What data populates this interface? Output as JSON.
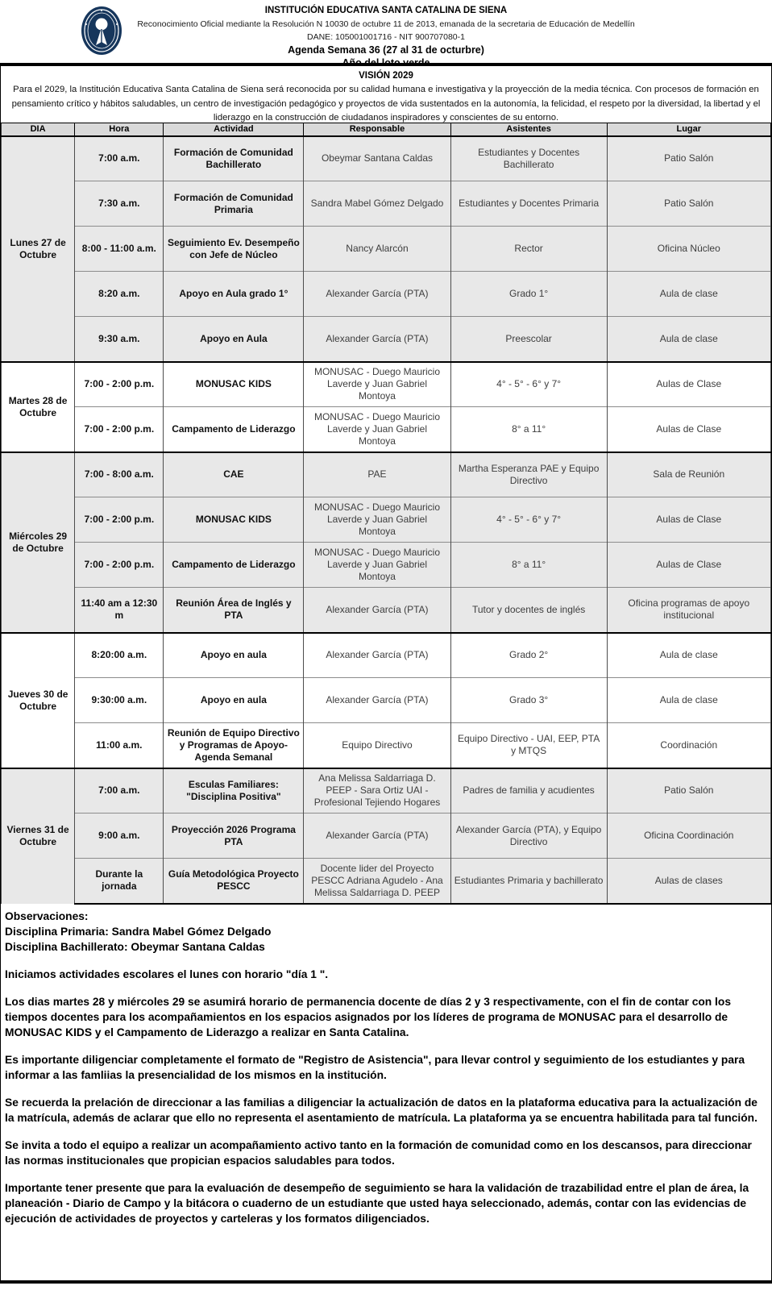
{
  "header": {
    "institution": "INSTITUCIÓN EDUCATIVA SANTA CATALINA DE SIENA",
    "recognition": "Reconocimiento Oficial mediante la Resolución N 10030 de octubre 11 de 2013, emanada de la secretaria de Educación de Medellín",
    "dane_nit": "DANE: 105001001716 - NIT 900707080-1",
    "agenda_title": "Agenda Semana 36 (27 al 31 de octurbre)",
    "year_motto": "Año del loto verde",
    "logo": "school-seal-icon"
  },
  "vision": {
    "title": "VISIÓN 2029",
    "text": "Para el 2029, la Institución Educativa Santa Catalina de Siena será reconocida por su calidad humana e investigativa y la proyección de la media técnica. Con procesos de formación en pensamiento crítico y hábitos saludables, un centro de investigación pedagógico y proyectos de vida sustentados en la autonomía, la felicidad, el respeto por la diversidad, la libertad y el liderazgo en la construcción de ciudadanos inspiradores y conscientes de su entorno."
  },
  "table": {
    "columns": [
      "DIA",
      "Hora",
      "Actividad",
      "Responsable",
      "Asistentes",
      "Lugar"
    ],
    "days": [
      {
        "day": "Lunes 27 de Octubre",
        "shaded": true,
        "rows": [
          {
            "hora": "7:00 a.m.",
            "actividad": "Formación de Comunidad Bachillerato",
            "responsable": "Obeymar Santana Caldas",
            "asistentes": "Estudiantes y Docentes Bachillerato",
            "lugar": "Patio Salón"
          },
          {
            "hora": "7:30 a.m.",
            "actividad": "Formación de Comunidad Primaria",
            "responsable": "Sandra Mabel Gómez Delgado",
            "asistentes": "Estudiantes y Docentes Primaria",
            "lugar": "Patio Salón"
          },
          {
            "hora": "8:00 - 11:00 a.m.",
            "actividad": "Seguimiento Ev. Desempeño con Jefe de Núcleo",
            "responsable": "Nancy Alarcón",
            "asistentes": "Rector",
            "lugar": "Oficina Núcleo"
          },
          {
            "hora": "8:20 a.m.",
            "actividad": "Apoyo en Aula grado 1°",
            "responsable": "Alexander García (PTA)",
            "asistentes": "Grado 1°",
            "lugar": "Aula de clase"
          },
          {
            "hora": "9:30 a.m.",
            "actividad": "Apoyo en Aula",
            "responsable": "Alexander García (PTA)",
            "asistentes": "Preescolar",
            "lugar": "Aula de clase"
          }
        ]
      },
      {
        "day": "Martes 28 de Octubre",
        "shaded": false,
        "rows": [
          {
            "hora": "7:00 - 2:00 p.m.",
            "actividad": "MONUSAC KIDS",
            "responsable": "MONUSAC - Duego Mauricio Laverde y Juan Gabriel Montoya",
            "asistentes": "4° - 5° - 6° y 7°",
            "lugar": "Aulas de Clase"
          },
          {
            "hora": "7:00 - 2:00 p.m.",
            "actividad": "Campamento de Liderazgo",
            "responsable": "MONUSAC - Duego Mauricio Laverde y Juan Gabriel Montoya",
            "asistentes": "8° a 11°",
            "lugar": "Aulas de Clase"
          }
        ]
      },
      {
        "day": "Miércoles 29 de Octubre",
        "shaded": true,
        "rows": [
          {
            "hora": "7:00 - 8:00 a.m.",
            "actividad": "CAE",
            "responsable": "PAE",
            "asistentes": "Martha Esperanza PAE y Equipo Directivo",
            "lugar": "Sala de Reunión"
          },
          {
            "hora": "7:00 - 2:00 p.m.",
            "actividad": "MONUSAC KIDS",
            "responsable": "MONUSAC - Duego Mauricio Laverde y Juan Gabriel Montoya",
            "asistentes": "4° - 5° - 6° y 7°",
            "lugar": "Aulas de Clase"
          },
          {
            "hora": "7:00 - 2:00 p.m.",
            "actividad": "Campamento de Liderazgo",
            "responsable": "MONUSAC - Duego Mauricio Laverde y Juan Gabriel Montoya",
            "asistentes": "8° a 11°",
            "lugar": "Aulas de Clase"
          },
          {
            "hora": "11:40 am a 12:30 m",
            "actividad": "Reunión Área de Inglés y PTA",
            "responsable": "Alexander García (PTA)",
            "asistentes": "Tutor y docentes de inglés",
            "lugar": "Oficina programas de apoyo institucional"
          }
        ]
      },
      {
        "day": "Jueves 30 de Octubre",
        "shaded": false,
        "rows": [
          {
            "hora": "8:20:00 a.m.",
            "actividad": "Apoyo en aula",
            "responsable": "Alexander García (PTA)",
            "asistentes": "Grado 2°",
            "lugar": "Aula de clase"
          },
          {
            "hora": "9:30:00 a.m.",
            "actividad": "Apoyo en aula",
            "responsable": "Alexander García (PTA)",
            "asistentes": "Grado 3°",
            "lugar": "Aula de clase"
          },
          {
            "hora": "11:00 a.m.",
            "actividad": "Reunión de Equipo Directivo y Programas de Apoyo- Agenda Semanal",
            "responsable": "Equipo Directivo",
            "asistentes": "Equipo Directivo - UAI, EEP, PTA y MTQS",
            "lugar": "Coordinación"
          }
        ]
      },
      {
        "day": "Viernes 31 de Octubre",
        "shaded": true,
        "rows": [
          {
            "hora": "7:00 a.m.",
            "actividad": "Esculas Familiares: \"Disciplina Positiva\"",
            "responsable": "Ana Melissa Saldarriaga D. PEEP - Sara Ortiz UAI - Profesional Tejiendo Hogares",
            "asistentes": "Padres de familia y acudientes",
            "lugar": "Patio Salón"
          },
          {
            "hora": "9:00 a.m.",
            "actividad": "Proyección 2026 Programa PTA",
            "responsable": "Alexander García (PTA)",
            "asistentes": "Alexander García (PTA), y Equipo Directivo",
            "lugar": "Oficina Coordinación"
          },
          {
            "hora": "Durante la jornada",
            "actividad": "Guía Metodológica Proyecto PESCC",
            "responsable": "Docente lider del  Proyecto PESCC Adriana Agudelo  - Ana Melissa Saldarriaga D. PEEP",
            "asistentes": "Estudiantes Primaria y bachillerato",
            "lugar": "Aulas de clases"
          }
        ]
      }
    ]
  },
  "observations": {
    "intro_lines": [
      "Observaciones:",
      "Disciplina Primaria: Sandra Mabel Gómez Delgado",
      "Disciplina Bachillerato: Obeymar Santana Caldas"
    ],
    "paragraphs": [
      "Iniciamos actividades escolares el lunes con horario \"día 1 \".",
      "Los dias martes 28 y miércoles 29 se asumirá horario de permanencia docente de días 2 y 3 respectivamente, con el fin de contar con los tiempos docentes para los acompañamientos en los espacios asignados por los líderes de programa de MONUSAC para el desarrollo de MONUSAC KIDS y el Campamento de Liderazgo a realizar en Santa Catalina.",
      "Es importante diligenciar completamente el formato de \"Registro de Asistencia\", para llevar control y seguimiento de los estudiantes y para informar a las famliias la presencialidad de los mismos en la institución.",
      "Se recuerda la prelación de direccionar a las familias a diligenciar la actualización de datos en la plataforma educativa para la actualización de la matrícula, además de aclarar que ello no representa el asentamiento de matrícula. La plataforma ya se encuentra habilitada para tal función.",
      "Se invita a todo el equipo a realizar un acompañamiento activo tanto en la formación de comunidad como en los descansos, para direccionar las normas institucionales que propician espacios saludables para todos.",
      "Importante tener presente que para la evaluación de desempeño de seguimiento se hara la validación de trazabilidad entre el plan de área, la planeación - Diario de Campo y la bitácora o cuaderno de un estudiante que usted haya seleccionado, además, contar con las evidencias de ejecución de actividades de proyectos y carteleras y los formatos diligenciados."
    ]
  },
  "colors": {
    "header_row_bg": "#d9d9d9",
    "shaded_group_bg": "#e8e8e8",
    "logo_navy": "#16365c",
    "border_black": "#000000",
    "border_grey": "#8c8c8c"
  }
}
